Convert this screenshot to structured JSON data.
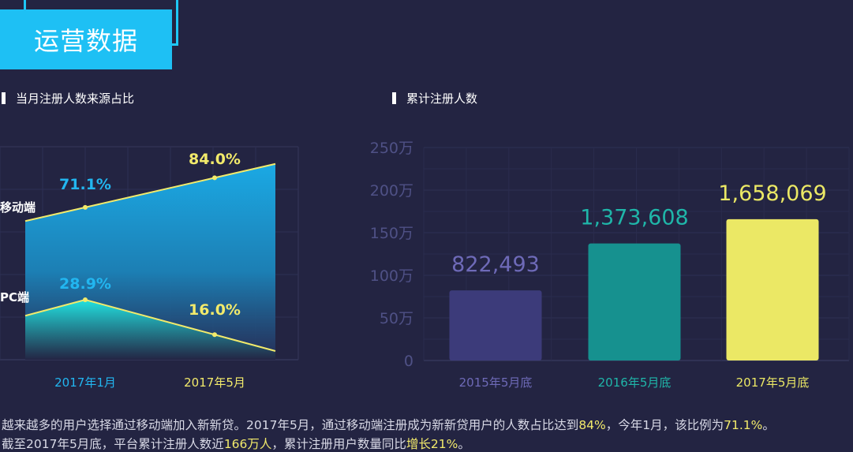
{
  "header": {
    "title": "运营数据"
  },
  "left_chart": {
    "section_title": "当月注册人数来源占比"
  },
  "right_chart": {
    "section_title": "累计注册人数"
  },
  "chart_data": [
    {
      "type": "area",
      "title": "当月注册人数来源占比",
      "categories": [
        "2017年1月",
        "2017年5月"
      ],
      "series": [
        {
          "name": "移动端",
          "values": [
            71.1,
            84.0
          ],
          "labels": [
            "71.1%",
            "84.0%"
          ],
          "color": "#1aa7e0"
        },
        {
          "name": "PC端",
          "values": [
            28.9,
            16.0
          ],
          "labels": [
            "28.9%",
            "16.0%"
          ],
          "color": "#22d9dc"
        }
      ],
      "label_colors": [
        "#22b6f0",
        "#f2ea6b"
      ],
      "line_color": "#f2ea6b",
      "grid": true
    },
    {
      "type": "bar",
      "title": "累计注册人数",
      "categories": [
        "2015年5月底",
        "2016年5月底",
        "2017年5月底"
      ],
      "values": [
        822493,
        1373608,
        1658069
      ],
      "value_labels": [
        "822,493",
        "1,373,608",
        "1,658,069"
      ],
      "colors": [
        "#3c3b7a",
        "#16918f",
        "#ebe865"
      ],
      "label_colors": [
        "#6e6ab8",
        "#1fb6a9",
        "#ebe865"
      ],
      "ylim": [
        0,
        2500000
      ],
      "y_ticks": [
        0,
        500000,
        1000000,
        1500000,
        2000000,
        2500000
      ],
      "y_tick_labels": [
        "0",
        "50万",
        "100万",
        "150万",
        "200万",
        "250万"
      ],
      "grid": true
    }
  ],
  "footer": {
    "line1_a": "越来越多的用户选择通过移动端加入新新贷。2017年5月，通过移动端注册成为新新贷用户的人数占比达到",
    "line1_b": "84%",
    "line1_c": "，今年1月，该比例为",
    "line1_d": "71.1%",
    "line1_e": "。",
    "line2_a": "截至2017年5月底，平台累计注册人数近",
    "line2_b": "166万人",
    "line2_c": "，累计注册用户数量同比",
    "line2_d": "增长21%",
    "line2_e": "。"
  }
}
